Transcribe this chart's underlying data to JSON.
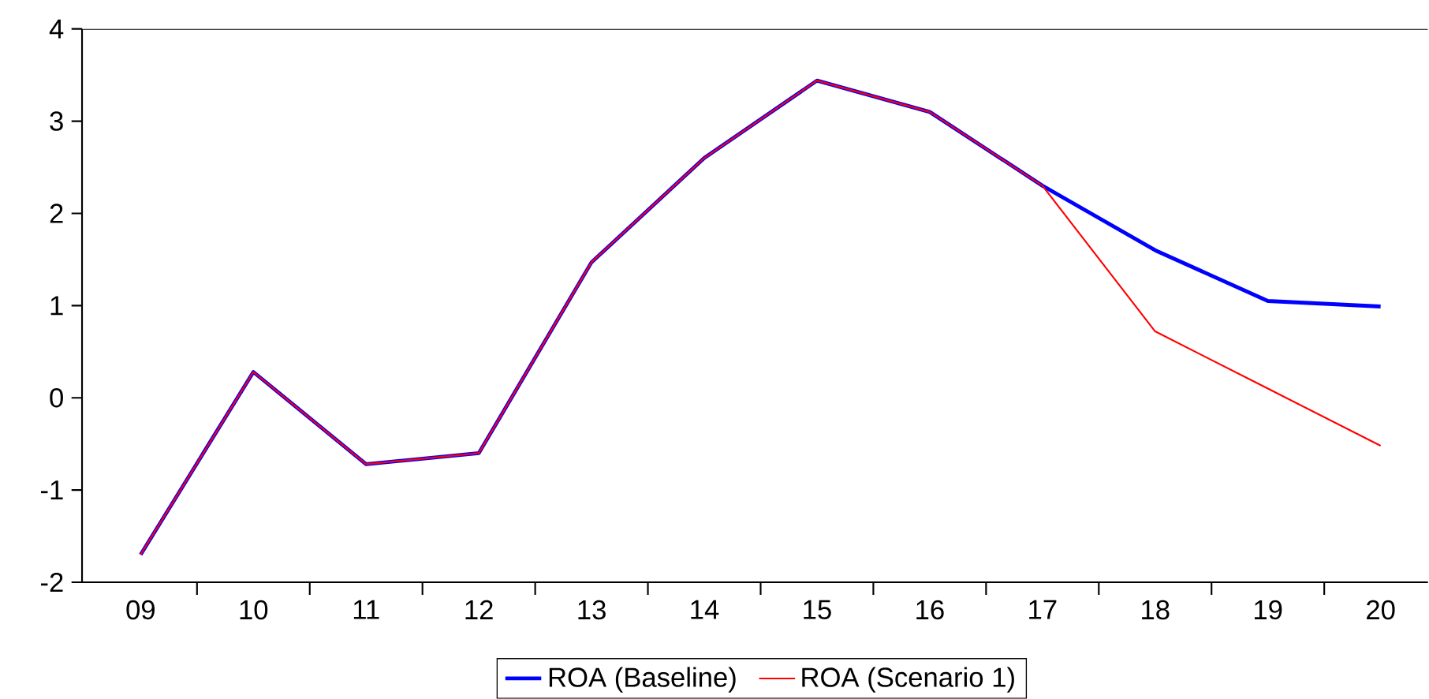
{
  "chart_data": {
    "type": "line",
    "categories": [
      "09",
      "10",
      "11",
      "12",
      "13",
      "14",
      "15",
      "16",
      "17",
      "18",
      "19",
      "20"
    ],
    "series": [
      {
        "name": "ROA (Baseline)",
        "color": "#0000ff",
        "values": [
          -1.7,
          0.28,
          -0.72,
          -0.6,
          1.47,
          2.6,
          3.44,
          3.1,
          2.3,
          1.6,
          1.05,
          0.99
        ]
      },
      {
        "name": "ROA (Scenario 1)",
        "color": "#ff0000",
        "values": [
          -1.7,
          0.28,
          -0.72,
          -0.6,
          1.47,
          2.6,
          3.44,
          3.1,
          2.3,
          0.72,
          0.1,
          -0.52
        ]
      }
    ],
    "ylim": [
      -2,
      4
    ],
    "yticks": [
      -2,
      -1,
      0,
      1,
      2,
      3,
      4
    ],
    "grid": false,
    "legend": "bottom",
    "marker": "none",
    "line_style": "solid"
  }
}
